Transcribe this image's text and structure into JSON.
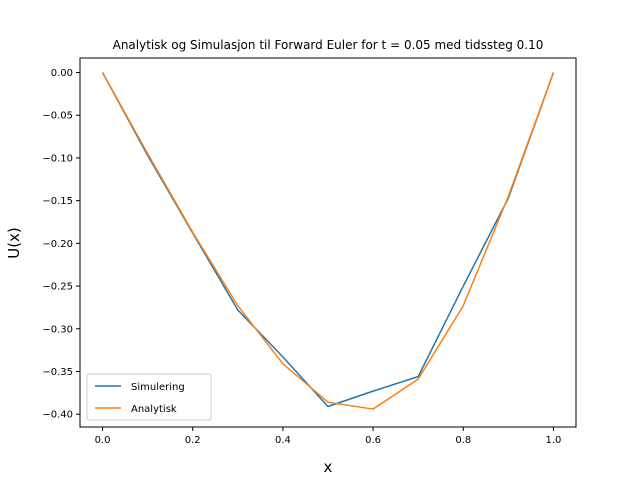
{
  "chart_data": {
    "type": "line",
    "title": "Analytisk og Simulasjon til Forward Euler for t = 0.05 med tidssteg 0.10",
    "xlabel": "x",
    "ylabel": "U(x)",
    "xlim": [
      -0.05,
      1.05
    ],
    "ylim": [
      -0.415,
      0.017
    ],
    "x_ticks": [
      "0.0",
      "0.2",
      "0.4",
      "0.6",
      "0.8",
      "1.0"
    ],
    "y_ticks": [
      "0.00",
      "−0.05",
      "−0.10",
      "−0.15",
      "−0.20",
      "−0.25",
      "−0.30",
      "−0.35",
      "−0.40"
    ],
    "x": [
      0.0,
      0.1,
      0.2,
      0.3,
      0.4,
      0.5,
      0.6,
      0.7,
      0.8,
      0.9,
      1.0
    ],
    "series": [
      {
        "name": "Simulering",
        "color": "#1f77b4",
        "values": [
          0.0,
          -0.097,
          -0.188,
          -0.278,
          -0.333,
          -0.391,
          -0.373,
          -0.356,
          -0.25,
          -0.147,
          0.0
        ]
      },
      {
        "name": "Analytisk",
        "color": "#ff7f0e",
        "values": [
          0.0,
          -0.095,
          -0.187,
          -0.273,
          -0.341,
          -0.386,
          -0.394,
          -0.359,
          -0.273,
          -0.145,
          0.0
        ]
      }
    ],
    "grid": false,
    "legend_position": "lower-left"
  }
}
